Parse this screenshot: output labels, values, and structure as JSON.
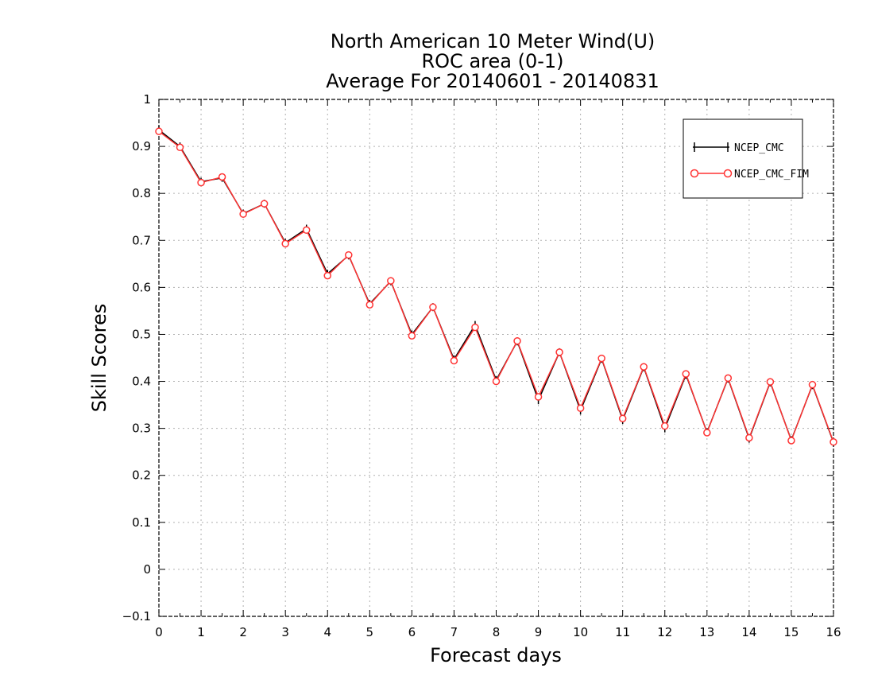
{
  "chart_data": {
    "type": "line",
    "title_lines": [
      "North American 10 Meter Wind(U)",
      "ROC area (0-1)",
      "Average For 20140601 - 20140831"
    ],
    "xlabel": "Forecast days",
    "ylabel": "Skill Scores",
    "xlim": [
      0,
      16
    ],
    "ylim": [
      -0.1,
      1
    ],
    "xticks": [
      "0",
      "1",
      "2",
      "3",
      "4",
      "5",
      "6",
      "7",
      "8",
      "9",
      "10",
      "11",
      "12",
      "13",
      "14",
      "15",
      "16"
    ],
    "yticks": [
      "−0.1",
      "0",
      "0.1",
      "0.2",
      "0.3",
      "0.4",
      "0.5",
      "0.6",
      "0.7",
      "0.8",
      "0.9",
      "1"
    ],
    "grid": true,
    "legend_position": "top-right",
    "x": [
      0,
      0.5,
      1,
      1.5,
      2,
      2.5,
      3,
      3.5,
      4,
      4.5,
      5,
      5.5,
      6,
      6.5,
      7,
      7.5,
      8,
      8.5,
      9,
      9.5,
      10,
      10.5,
      11,
      11.5,
      12,
      12.5,
      13,
      13.5,
      14,
      14.5,
      15,
      15.5,
      16
    ],
    "series": [
      {
        "name": "NCEP_CMC",
        "color": "#000000",
        "marker": "plus",
        "values": [
          0.935,
          0.9,
          0.825,
          0.833,
          0.757,
          0.778,
          0.695,
          0.725,
          0.629,
          0.668,
          0.565,
          0.613,
          0.5,
          0.558,
          0.447,
          0.52,
          0.403,
          0.485,
          0.36,
          0.462,
          0.338,
          0.448,
          0.318,
          0.43,
          0.3,
          0.414,
          0.292,
          0.406,
          0.278,
          0.398,
          0.275,
          0.392,
          0.27
        ]
      },
      {
        "name": "NCEP_CMC_FIM",
        "color": "#ff3333",
        "marker": "circle",
        "values": [
          0.932,
          0.898,
          0.823,
          0.835,
          0.756,
          0.778,
          0.693,
          0.722,
          0.625,
          0.669,
          0.563,
          0.614,
          0.497,
          0.558,
          0.444,
          0.515,
          0.4,
          0.486,
          0.367,
          0.462,
          0.343,
          0.449,
          0.321,
          0.431,
          0.305,
          0.416,
          0.291,
          0.407,
          0.28,
          0.399,
          0.274,
          0.393,
          0.271
        ]
      }
    ]
  }
}
